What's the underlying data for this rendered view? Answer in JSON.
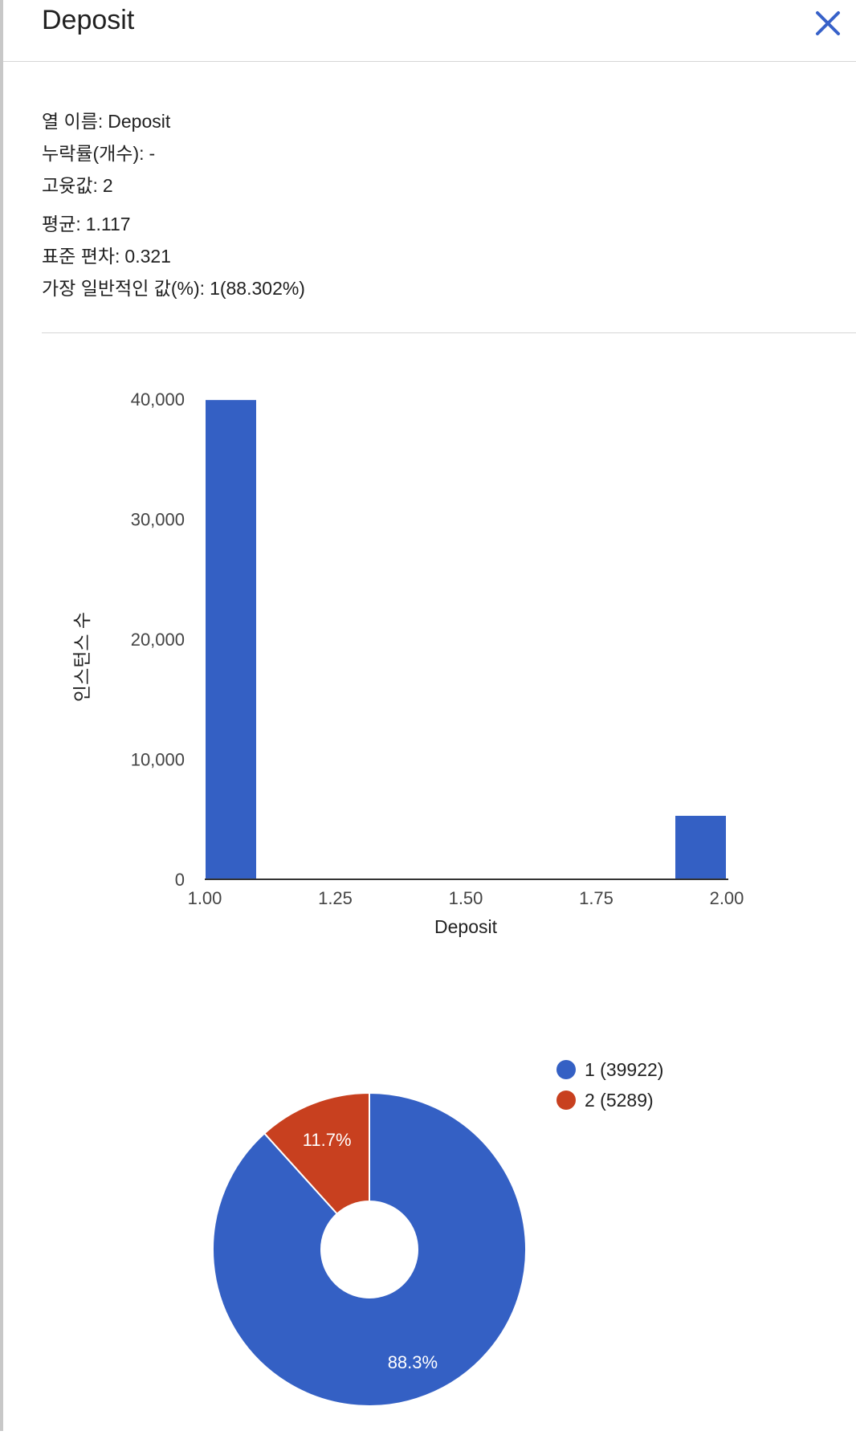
{
  "header": {
    "title": "Deposit",
    "close_icon": "close-icon",
    "accent_color": "#3761c9"
  },
  "stats": [
    {
      "label": "열 이름:",
      "value": "Deposit"
    },
    {
      "label": "누락률(개수):",
      "value": "-"
    },
    {
      "label": "고윳값:",
      "value": "2"
    },
    {
      "label": "평균:",
      "value": "1.117"
    },
    {
      "label": "표준 편차:",
      "value": "0.321"
    },
    {
      "label": "가장 일반적인 값(%):",
      "value": "1(88.302%)"
    }
  ],
  "chart_data": [
    {
      "type": "bar",
      "title": "",
      "xlabel": "Deposit",
      "ylabel": "인스턴스 수",
      "xlim": [
        1.0,
        2.0
      ],
      "ylim": [
        0,
        40000
      ],
      "x_ticks": [
        "1.00",
        "1.25",
        "1.50",
        "1.75",
        "2.00"
      ],
      "y_ticks": [
        "0",
        "10,000",
        "20,000",
        "30,000",
        "40,000"
      ],
      "bins": [
        {
          "x0": 1.0,
          "x1": 1.1,
          "value": 39922
        },
        {
          "x0": 1.9,
          "x1": 2.0,
          "value": 5289
        }
      ],
      "bar_color": "#3460c4",
      "grid": false
    },
    {
      "type": "pie",
      "donut": true,
      "legend_position": "top-right",
      "slices": [
        {
          "legend": "1 (39922)",
          "value": 39922,
          "label": "88.3%",
          "color": "#3460c4"
        },
        {
          "legend": "2 (5289)",
          "value": 5289,
          "label": "11.7%",
          "color": "#c8401f"
        }
      ]
    }
  ]
}
